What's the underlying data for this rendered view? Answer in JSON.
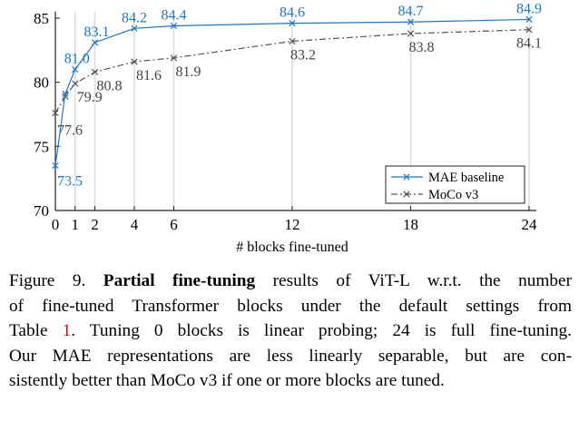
{
  "chart_data": {
    "type": "line",
    "xlabel": "# blocks fine-tuned",
    "ylabel": "",
    "xlim": [
      0,
      24
    ],
    "ylim": [
      70,
      85.5
    ],
    "xticks": [
      0,
      1,
      2,
      4,
      6,
      12,
      18,
      24
    ],
    "yticks": [
      70,
      75,
      80,
      85
    ],
    "grid": "vertical lines at x ticks",
    "legend": "bottom-right",
    "series": [
      {
        "name": "MAE baseline",
        "color": "#1f77c4",
        "style": "solid",
        "x": [
          0,
          0.5,
          1,
          2,
          4,
          6,
          12,
          18,
          24
        ],
        "y": [
          73.5,
          79.1,
          81.0,
          83.1,
          84.2,
          84.4,
          84.6,
          84.7,
          84.9
        ],
        "labels": [
          "73.5",
          "",
          "81.0",
          "83.1",
          "84.2",
          "84.4",
          "84.6",
          "84.7",
          "84.9"
        ]
      },
      {
        "name": "MoCo v3",
        "color": "#555555",
        "style": "dash-dot",
        "x": [
          0,
          0.5,
          1,
          2,
          4,
          6,
          12,
          18,
          24
        ],
        "y": [
          77.6,
          78.9,
          79.9,
          80.8,
          81.6,
          81.9,
          83.2,
          83.8,
          84.1
        ],
        "labels": [
          "77.6",
          "",
          "79.9",
          "80.8",
          "81.6",
          "81.9",
          "83.2",
          "83.8",
          "84.1"
        ]
      }
    ]
  },
  "caption": {
    "fig": "Figure 9.",
    "bold": "Partial fine-tuning",
    "l1rest": " results of ViT-L w.r.t. the number",
    "l2": "of fine-tuned Transformer blocks under the default settings from",
    "l3a": "Table ",
    "l3ref": "1",
    "l3b": ". Tuning 0 blocks is linear probing; 24 is full fine-tuning.",
    "l4": "Our MAE representations are less linearly separable, but are con-",
    "l5": "sistently better than MoCo v3 if one or more blocks are tuned."
  }
}
